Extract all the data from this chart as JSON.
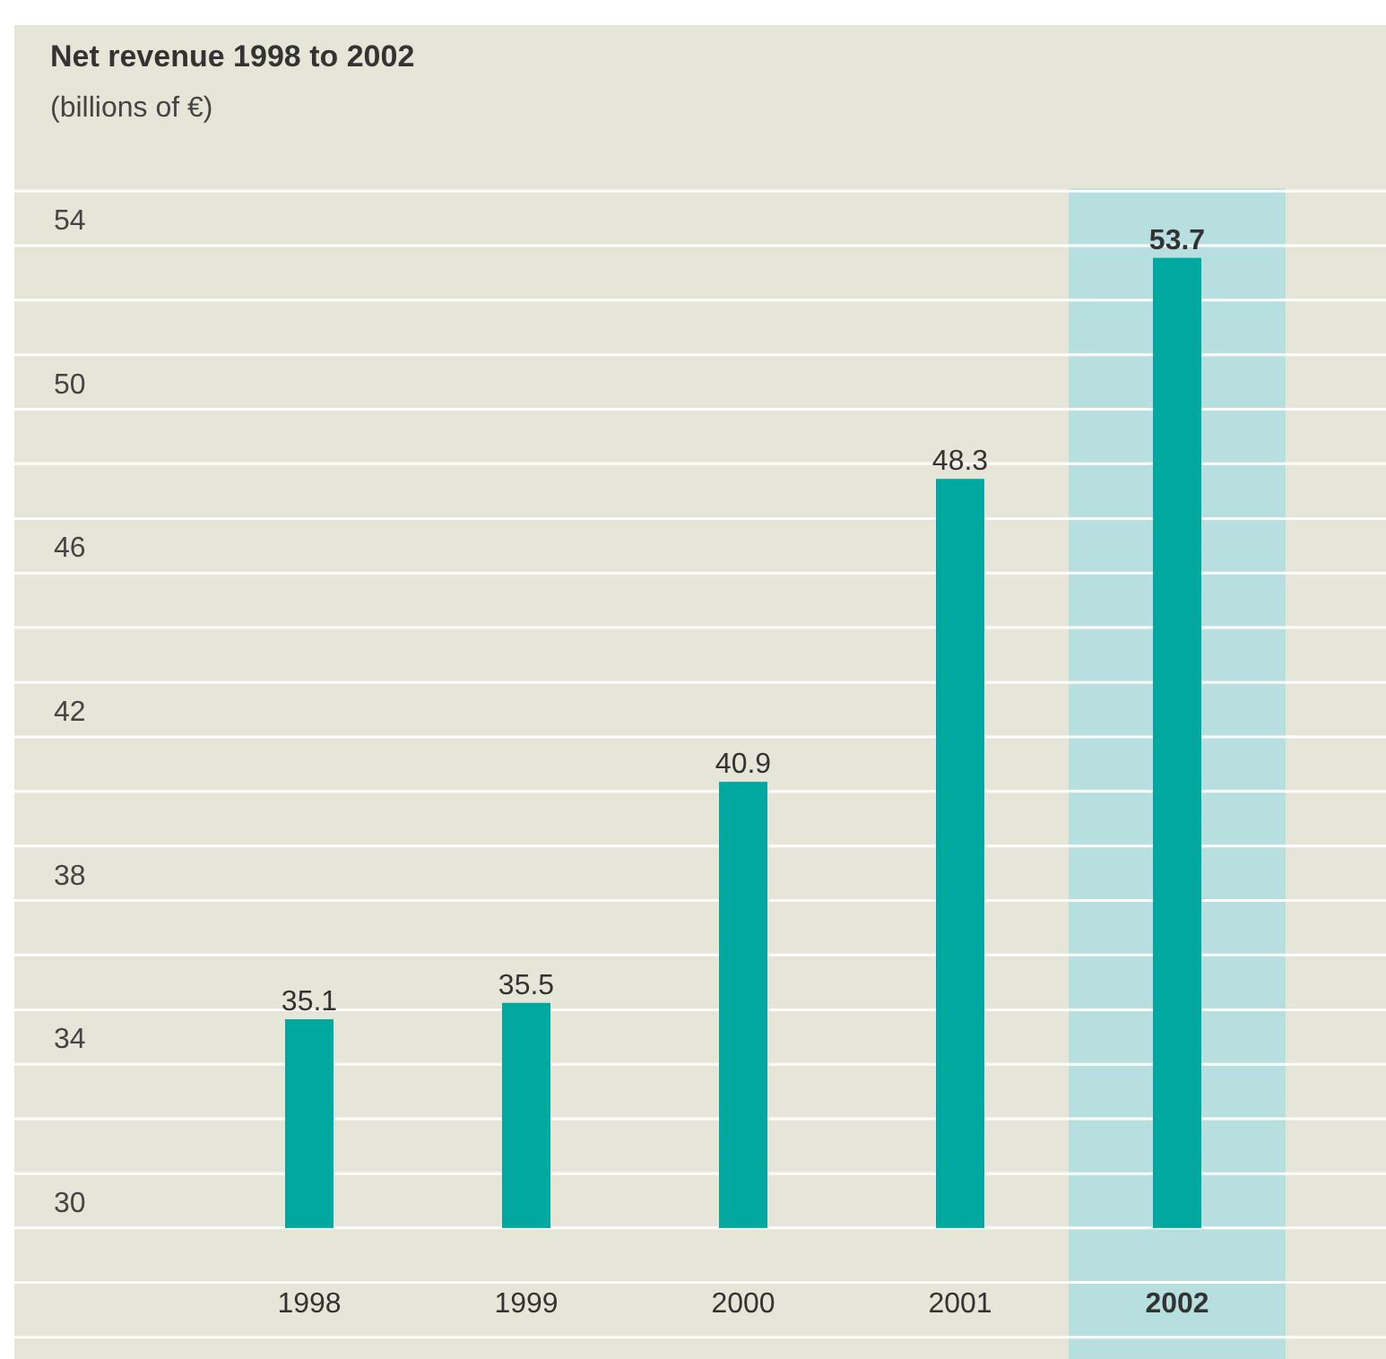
{
  "chart_data": {
    "type": "bar",
    "title": "Net revenue 1998 to 2002",
    "subtitle": "(billions of €)",
    "categories": [
      "1998",
      "1999",
      "2000",
      "2001",
      "2002"
    ],
    "base": [
      30,
      30,
      30,
      30,
      30
    ],
    "values": [
      5.1,
      5.5,
      10.9,
      18.3,
      23.7
    ],
    "color": "#00a8a0",
    "value_labels": [
      "35.1",
      "35.5",
      "40.9",
      "48.3",
      "53.7"
    ],
    "ylim": [
      26.8,
      55.4
    ],
    "yticks": [
      {
        "value": 27.33,
        "label": null
      },
      {
        "value": 28.67,
        "label": null
      },
      30,
      {
        "value": 31.33,
        "label": null
      },
      {
        "value": 32.67,
        "label": null
      },
      34,
      {
        "value": 35.33,
        "label": null
      },
      {
        "value": 36.67,
        "label": null
      },
      38,
      {
        "value": 39.33,
        "label": null
      },
      {
        "value": 40.67,
        "label": null
      },
      42,
      {
        "value": 43.33,
        "label": null
      },
      {
        "value": 44.67,
        "label": null
      },
      46,
      {
        "value": 47.33,
        "label": null
      },
      {
        "value": 48.67,
        "label": null
      },
      50,
      {
        "value": 51.33,
        "label": null
      },
      {
        "value": 52.67,
        "label": null
      },
      54,
      {
        "value": 55.33,
        "label": null
      }
    ],
    "grid": "y",
    "bands": [
      {
        "axis": "x",
        "from": "2002",
        "to": "2002",
        "color": "#b8dfe0"
      }
    ]
  }
}
